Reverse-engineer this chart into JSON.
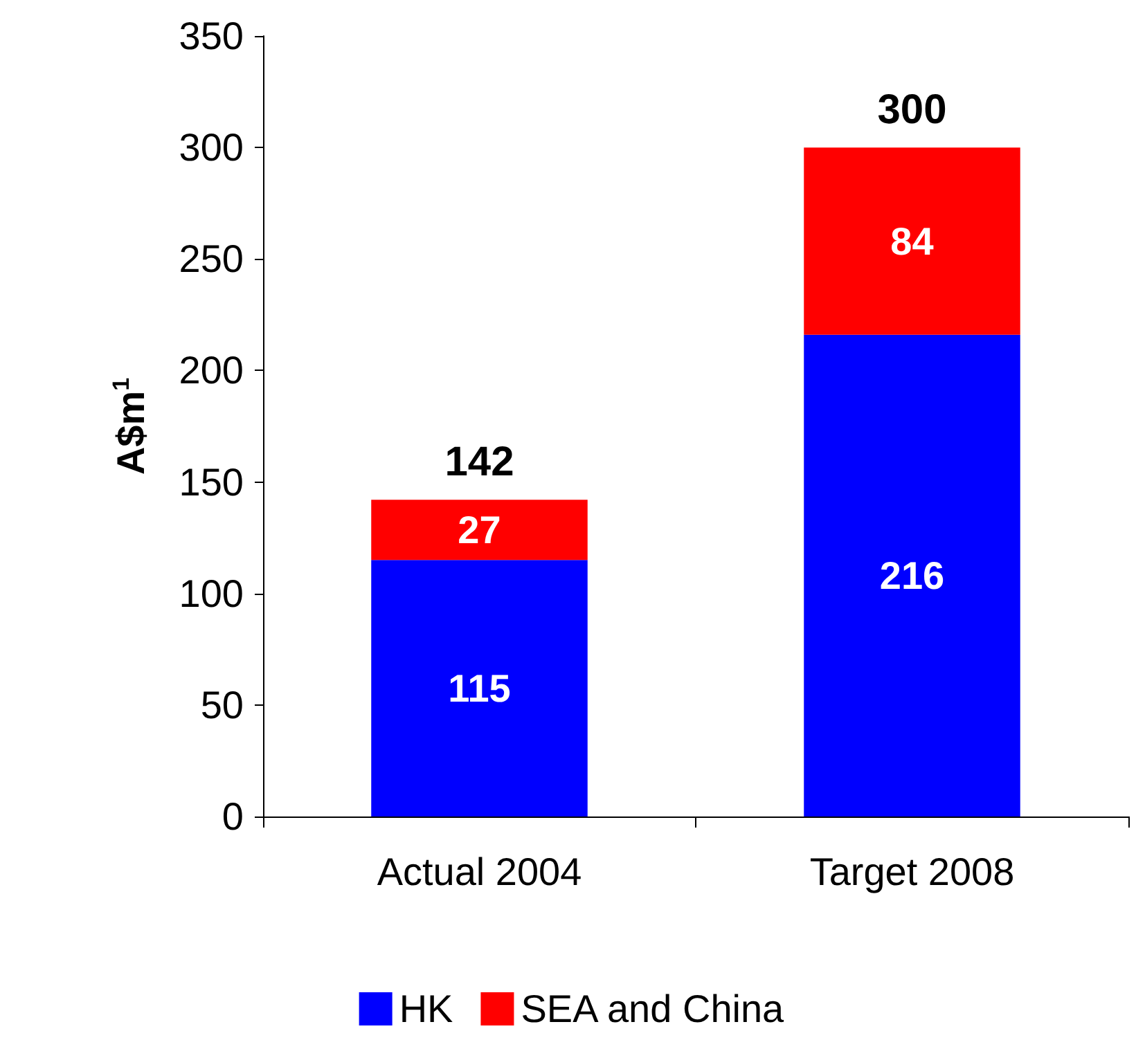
{
  "chart_data": {
    "type": "bar",
    "stacked": true,
    "ylabel": "A$m$^{1}$",
    "categories": [
      "Actual 2004",
      "Target 2008"
    ],
    "series": [
      {
        "name": "HK",
        "color": "#0000ff",
        "values": [
          115,
          216
        ]
      },
      {
        "name": "SEA and China",
        "color": "#ff0000",
        "values": [
          27,
          84
        ]
      }
    ],
    "data_labels": true,
    "totals": [
      "142",
      "300"
    ],
    "ylim": [
      0,
      350
    ],
    "yticks": [
      0,
      50,
      100,
      150,
      200,
      250,
      300,
      350
    ],
    "grid": false,
    "legend": "bottom"
  }
}
